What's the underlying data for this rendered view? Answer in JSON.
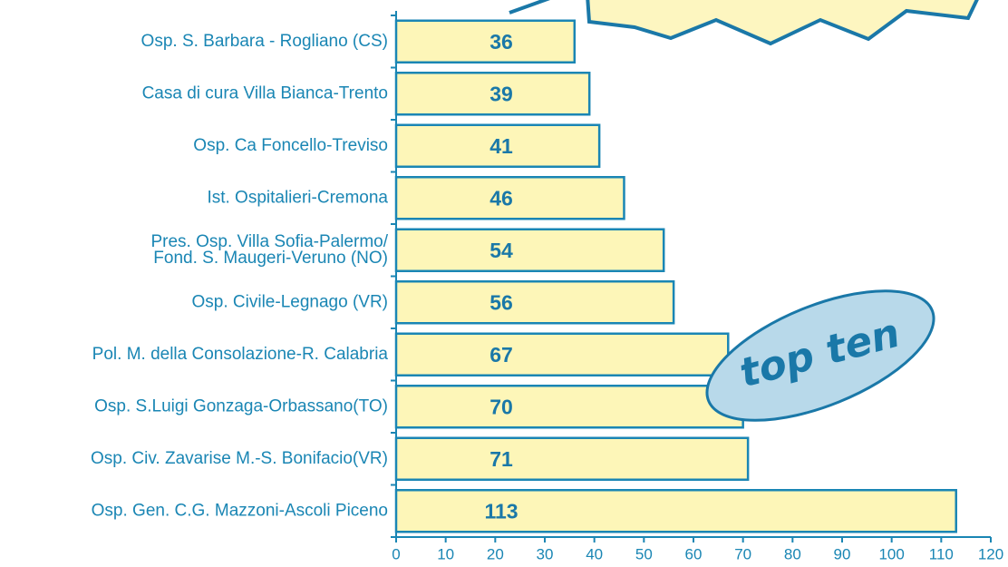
{
  "chart_data": {
    "type": "barh",
    "categories": [
      "Osp. S. Barbara - Rogliano (CS)",
      "Casa di cura Villa Bianca-Trento",
      "Osp. Ca Foncello-Treviso",
      "Ist. Ospitalieri-Cremona",
      "Pres. Osp. Villa Sofia-Palermo/\nFond. S. Maugeri-Veruno (NO)",
      "Osp. Civile-Legnago (VR)",
      "Pol. M. della Consolazione-R. Calabria",
      "Osp. S.Luigi Gonzaga-Orbassano(TO)",
      "Osp. Civ. Zavarise M.-S. Bonifacio(VR)",
      "Osp. Gen. C.G. Mazzoni-Ascoli Piceno"
    ],
    "values": [
      36,
      39,
      41,
      46,
      54,
      56,
      67,
      70,
      71,
      113
    ],
    "color": "#fdf6b8",
    "edge_color": "#1a86b4",
    "xlim": [
      0,
      120
    ],
    "xticks": [
      0,
      10,
      20,
      30,
      40,
      50,
      60,
      70,
      80,
      90,
      100,
      110,
      120
    ],
    "annotation": "top ten"
  }
}
